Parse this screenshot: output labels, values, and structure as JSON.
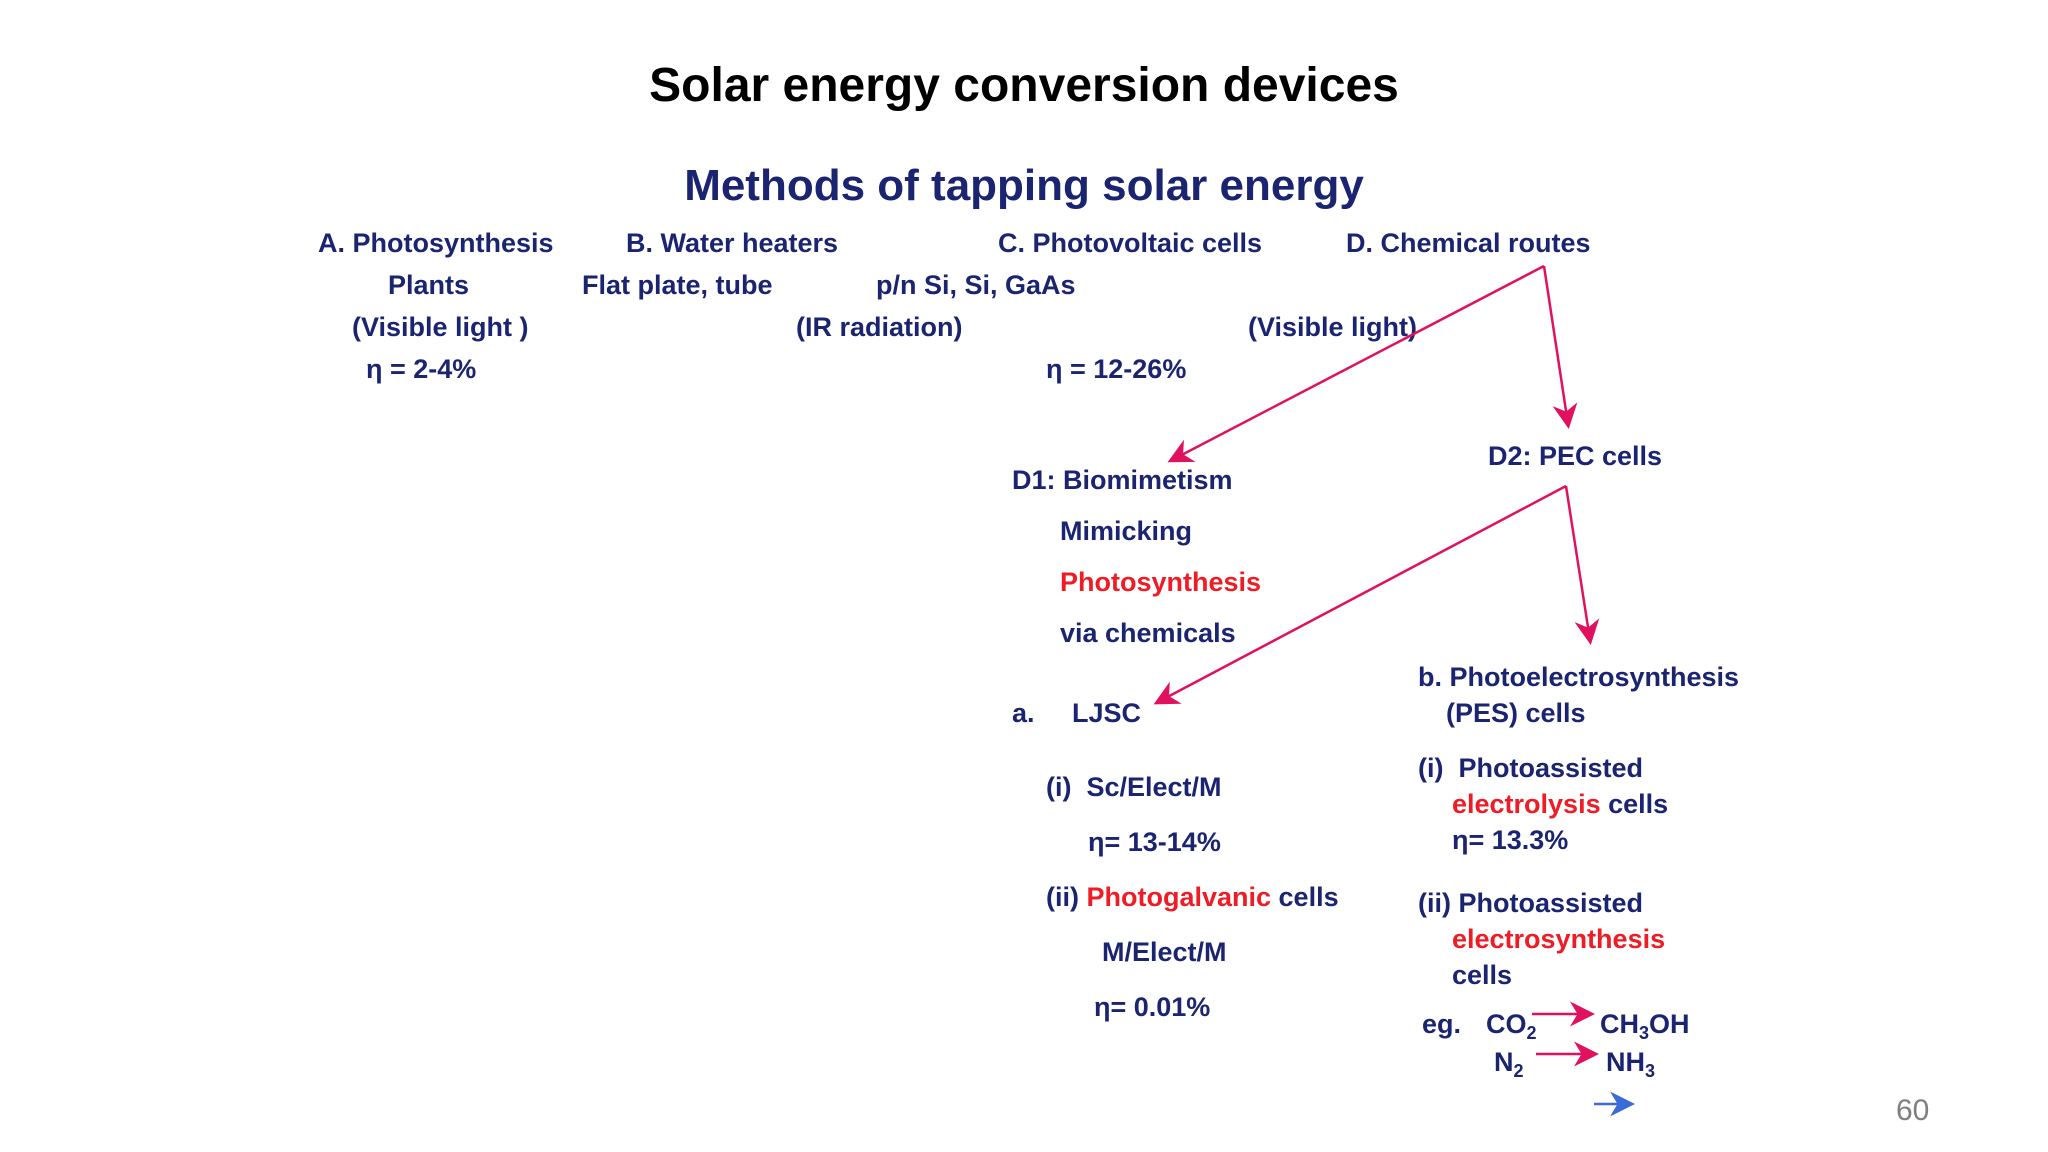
{
  "title": "Solar energy conversion devices",
  "subtitle": "Methods of tapping solar energy",
  "methods": {
    "a": {
      "label": "A. Photosynthesis",
      "sub1": "Plants",
      "sub2": "(Visible light )",
      "eta": "η   =   2-4%"
    },
    "b": {
      "label": "B. Water heaters",
      "sub1": "Flat plate, tube",
      "sub2": "(IR radiation)"
    },
    "c": {
      "label": "C. Photovoltaic cells",
      "sub1": "p/n Si, Si, GaAs",
      "eta": "η   =  12-26%"
    },
    "d": {
      "label": "D. Chemical routes",
      "sub2": "(Visible light)"
    }
  },
  "d1": {
    "label": "D1: Biomimetism",
    "line1": "Mimicking",
    "line2": "Photosynthesis",
    "line3": "via chemicals"
  },
  "d2": {
    "label": "D2: PEC cells"
  },
  "ljsc": {
    "label": "a.     LJSC",
    "i_label": "(i)  Sc/Elect/M",
    "i_eta": "η= 13-14%",
    "ii_prefix": "(ii) ",
    "ii_red": "Photogalvanic",
    "ii_suffix": " cells",
    "ii_sub": "M/Elect/M",
    "ii_eta": "η= 0.01%"
  },
  "pes": {
    "label1": "b. Photoelectrosynthesis",
    "label2": "(PES) cells",
    "i_label": "(i)  Photoassisted",
    "i_red": "electrolysis",
    "i_suffix": " cells",
    "i_eta": "η= 13.3%",
    "ii_label": "(ii) Photoassisted",
    "ii_red": "electrosynthesis",
    "ii_suffix": "cells",
    "eg": "eg.",
    "co": "CO",
    "co_sub": "2",
    "ch": "CH",
    "ch_sub": "3",
    "oh": "OH",
    "n": "N",
    "n_sub": "2",
    "nh": "NH",
    "nh_sub": "3"
  },
  "page_number": "60",
  "colors": {
    "navy": "#1b2470",
    "red": "#ee1c25",
    "arrow": "#e0115f",
    "blue_arrow": "#3b6bd6"
  }
}
